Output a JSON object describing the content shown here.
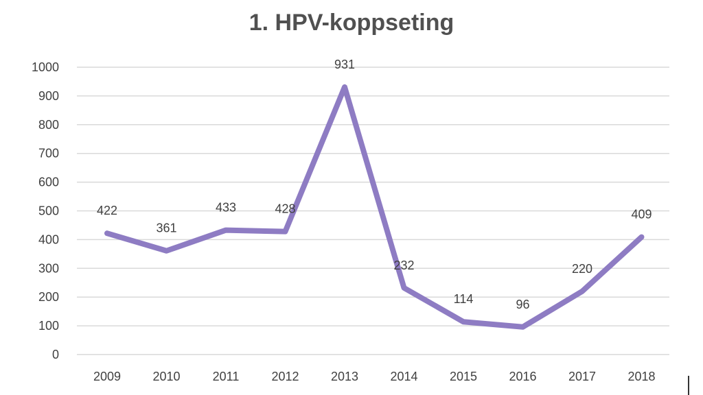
{
  "chart_data": {
    "type": "line",
    "title": "1. HPV-koppseting",
    "categories": [
      "2009",
      "2010",
      "2011",
      "2012",
      "2013",
      "2014",
      "2015",
      "2016",
      "2017",
      "2018"
    ],
    "series": [
      {
        "values": [
          422,
          361,
          433,
          428,
          931,
          232,
          114,
          96,
          220,
          409
        ],
        "color": "#8e7cc3"
      }
    ],
    "yticks": [
      "0",
      "100",
      "200",
      "300",
      "400",
      "500",
      "600",
      "700",
      "800",
      "900",
      "1000"
    ],
    "ylim": [
      0,
      1000
    ],
    "grid": true,
    "data_labels": true,
    "legend": "none"
  }
}
